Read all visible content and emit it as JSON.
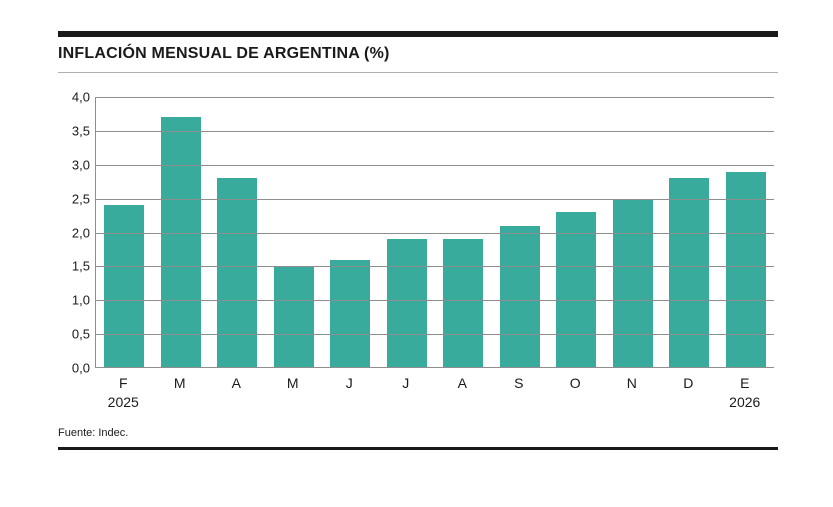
{
  "chart_data": {
    "type": "bar",
    "title": "INFLACIÓN MENSUAL DE ARGENTINA (%)",
    "categories": [
      "F",
      "M",
      "A",
      "M",
      "J",
      "J",
      "A",
      "S",
      "O",
      "N",
      "D",
      "E"
    ],
    "values": [
      2.4,
      3.7,
      2.8,
      1.5,
      1.6,
      1.9,
      1.9,
      2.1,
      2.3,
      2.5,
      2.8,
      2.9
    ],
    "x_year_labels": {
      "first": "2025",
      "last": "2026"
    },
    "ylim": [
      0,
      4
    ],
    "ytick_step": 0.5,
    "ytick_labels": [
      "0,0",
      "0,5",
      "1,0",
      "1,5",
      "2,0",
      "2,5",
      "3,0",
      "3,5",
      "4,0"
    ],
    "grid": true,
    "legend": false,
    "source": "Fuente: Indec."
  },
  "colors": {
    "bar": "#38AB9C",
    "grid": "#8E8E8E",
    "rule": "#1A1A1A",
    "title-rule": "#B0B0B0",
    "text": "#1A1A1A"
  }
}
